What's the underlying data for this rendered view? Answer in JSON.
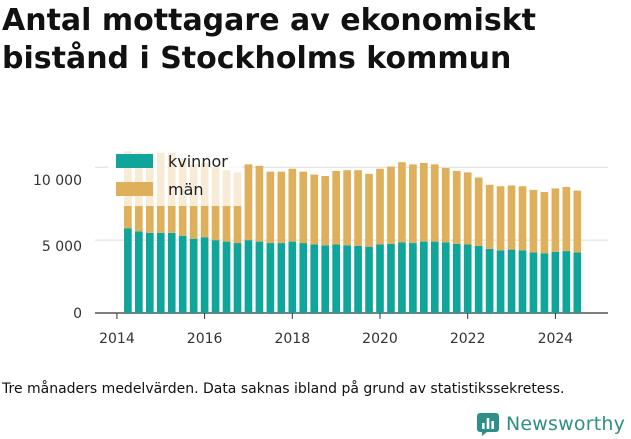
{
  "title": "Antal mottagare av ekonomiskt bistånd i Stockholms kommun",
  "caption": "Tre månaders medelvärden. Data saknas ibland på grund av statistikssekretess.",
  "brand": "Newsworthy",
  "colors": {
    "kvinnor": "#10a59b",
    "man": "#deb05c",
    "grid": "#dddddd",
    "axis": "#333333",
    "brand": "#2e8f86"
  },
  "chart_data": {
    "type": "bar",
    "stacked": true,
    "x_ticks": [
      "2014",
      "2016",
      "2018",
      "2020",
      "2022",
      "2024"
    ],
    "x_tick_values": [
      2014,
      2016,
      2018,
      2020,
      2022,
      2024
    ],
    "xlim": [
      2013.5,
      2025.2
    ],
    "y_ticks": [
      "0",
      "5 000",
      "10 000"
    ],
    "y_tick_values": [
      0,
      5000,
      10000
    ],
    "ylim": [
      0,
      10500
    ],
    "grid": true,
    "legend_position": "top-left",
    "x": [
      2014.25,
      2014.5,
      2014.75,
      2015.0,
      2015.25,
      2015.5,
      2015.75,
      2016.0,
      2016.25,
      2016.5,
      2016.75,
      2017.0,
      2017.25,
      2017.5,
      2017.75,
      2018.0,
      2018.25,
      2018.5,
      2018.75,
      2019.0,
      2019.25,
      2019.5,
      2019.75,
      2020.0,
      2020.25,
      2020.5,
      2020.75,
      2021.0,
      2021.25,
      2021.5,
      2021.75,
      2022.0,
      2022.25,
      2022.5,
      2022.75,
      2023.0,
      2023.25,
      2023.5,
      2023.75,
      2024.0,
      2024.25,
      2024.5
    ],
    "series": [
      {
        "name": "kvinnor",
        "values": [
          5800,
          5600,
          5500,
          5500,
          5500,
          5300,
          5100,
          5200,
          5000,
          4900,
          4800,
          5000,
          4900,
          4800,
          4800,
          4900,
          4800,
          4700,
          4650,
          4700,
          4650,
          4600,
          4550,
          4700,
          4750,
          4850,
          4800,
          4900,
          4900,
          4850,
          4750,
          4700,
          4600,
          4400,
          4300,
          4350,
          4300,
          4150,
          4100,
          4200,
          4250,
          4150
        ]
      },
      {
        "name": "män",
        "values": [
          5300,
          5400,
          5500,
          5500,
          5500,
          5300,
          5100,
          5100,
          5000,
          4900,
          4850,
          5200,
          5200,
          4900,
          4900,
          5000,
          4900,
          4800,
          4750,
          5050,
          5150,
          5200,
          5000,
          5200,
          5300,
          5500,
          5400,
          5400,
          5300,
          5100,
          5000,
          4950,
          4700,
          4400,
          4400,
          4400,
          4400,
          4300,
          4200,
          4350,
          4400,
          4250
        ]
      }
    ]
  }
}
